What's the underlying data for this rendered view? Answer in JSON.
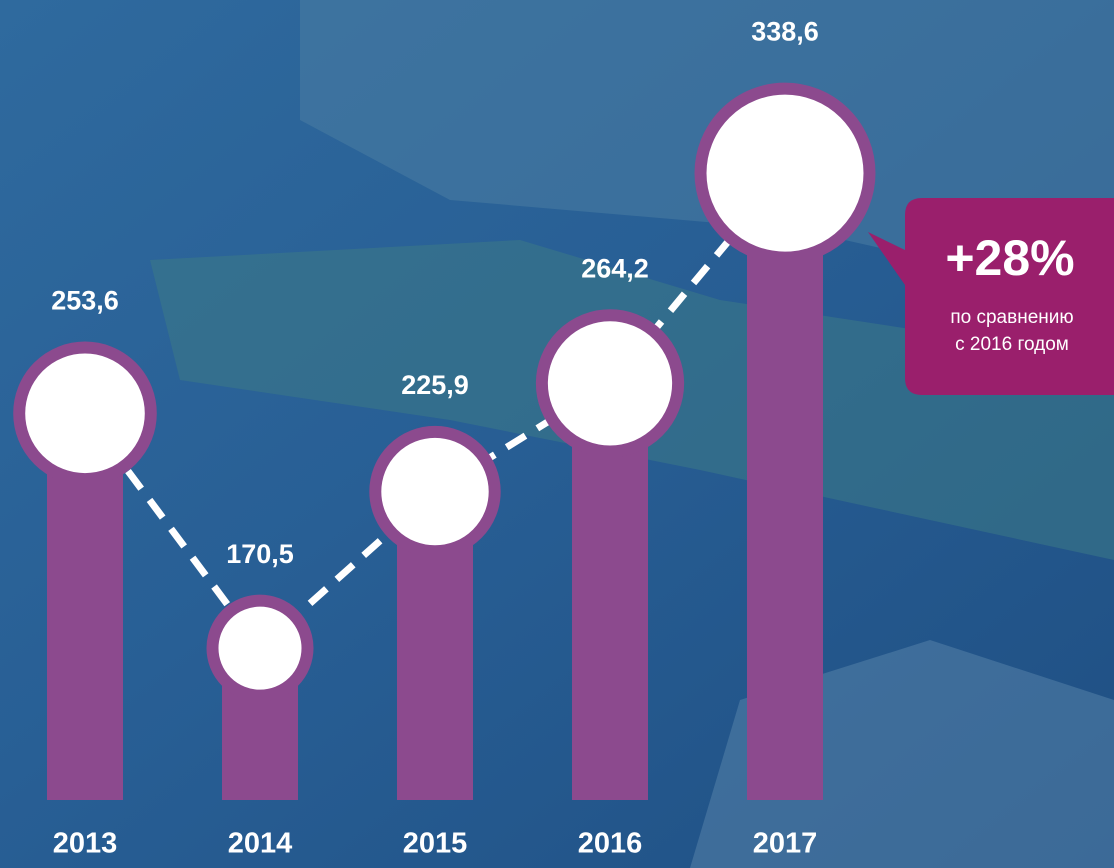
{
  "chart_data": {
    "type": "lollipop",
    "categories": [
      "2013",
      "2014",
      "2015",
      "2016",
      "2017"
    ],
    "values": [
      253.6,
      170.5,
      225.9,
      264.2,
      338.6
    ],
    "value_labels": [
      "253,6",
      "170,5",
      "225,9",
      "264,2",
      "338,6"
    ],
    "color": "#8c4a8e",
    "annotation": {
      "title": "+28%",
      "lines": [
        "по сравнению",
        "с 2016 годом"
      ],
      "color": "#9a1f6c"
    }
  }
}
